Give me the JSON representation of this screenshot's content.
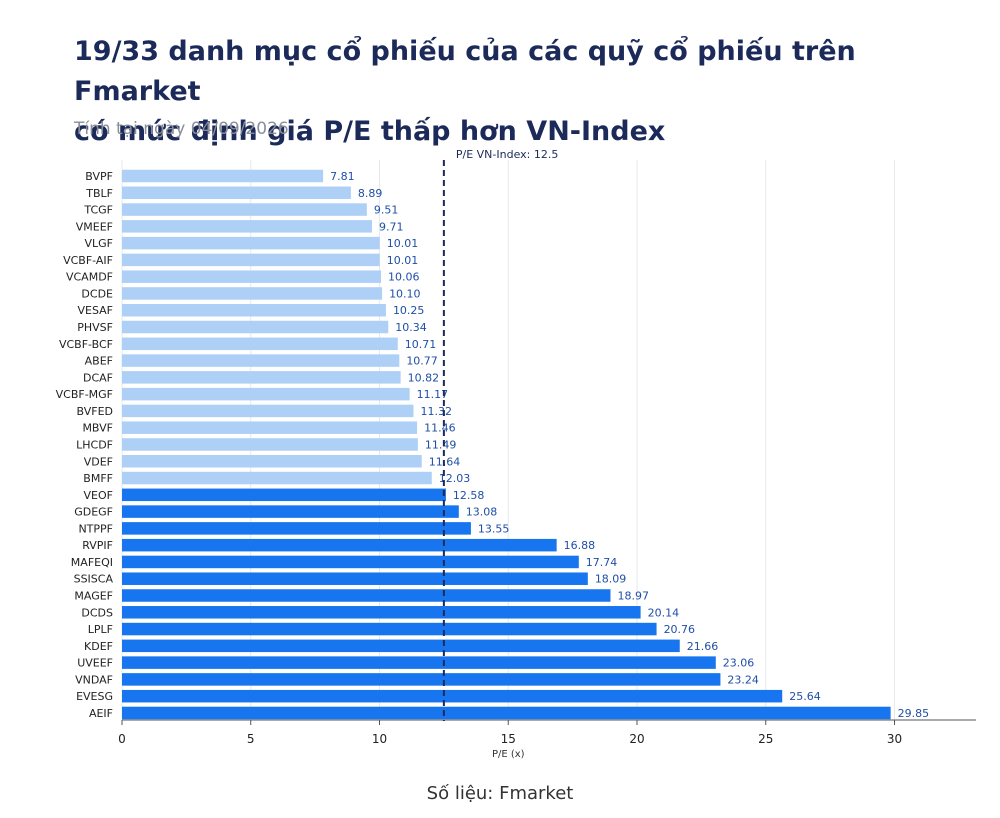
{
  "title_line1": "19/33 danh mục cổ phiếu của các quỹ cổ phiếu trên Fmarket",
  "title_line2": "có mức định giá P/E thấp hơn VN-Index",
  "subtitle": "Tính tại ngày 04/09/2026",
  "source": "Số liệu: Fmarket",
  "chart_data": {
    "type": "bar",
    "orientation": "horizontal",
    "categories": [
      "BVPF",
      "TBLF",
      "TCGF",
      "VMEEF",
      "VLGF",
      "VCBF-AIF",
      "VCAMDF",
      "DCDE",
      "VESAF",
      "PHVSF",
      "VCBF-BCF",
      "ABEF",
      "DCAF",
      "VCBF-MGF",
      "BVFED",
      "MBVF",
      "LHCDF",
      "VDEF",
      "BMFF",
      "VEOF",
      "GDEGF",
      "NTPPF",
      "RVPIF",
      "MAFEQI",
      "SSISCA",
      "MAGEF",
      "DCDS",
      "LPLF",
      "KDEF",
      "UVEEF",
      "VNDAF",
      "EVESG",
      "AEIF"
    ],
    "values": [
      7.81,
      8.89,
      9.51,
      9.71,
      10.01,
      10.01,
      10.06,
      10.1,
      10.25,
      10.34,
      10.71,
      10.77,
      10.82,
      11.17,
      11.32,
      11.46,
      11.49,
      11.64,
      12.03,
      12.58,
      13.08,
      13.55,
      16.88,
      17.74,
      18.09,
      18.97,
      20.14,
      20.76,
      21.66,
      23.06,
      23.24,
      25.64,
      29.85
    ],
    "value_labels": [
      "7.81",
      "8.89",
      "9.51",
      "9.71",
      "10.01",
      "10.01",
      "10.06",
      "10.10",
      "10.25",
      "10.34",
      "10.71",
      "10.77",
      "10.82",
      "11.17",
      "11.32",
      "11.46",
      "11.49",
      "11.64",
      "12.03",
      "12.58",
      "13.08",
      "13.55",
      "16.88",
      "17.74",
      "18.09",
      "18.97",
      "20.14",
      "20.76",
      "21.66",
      "23.06",
      "23.24",
      "25.64",
      "29.85"
    ],
    "xlabel": "P/E (x)",
    "xlim": [
      0,
      32
    ],
    "xticks": [
      0,
      5,
      10,
      15,
      20,
      25,
      30
    ],
    "grid": "vertical",
    "reference_line": {
      "value": 12.5,
      "label": "P/E VN-Index: 12.5"
    },
    "colors": {
      "below": "#aed0f7",
      "above": "#1775ef",
      "label": "#1f4fa8",
      "refline": "#1c2a5a",
      "grid": "#e6e8ec"
    }
  }
}
